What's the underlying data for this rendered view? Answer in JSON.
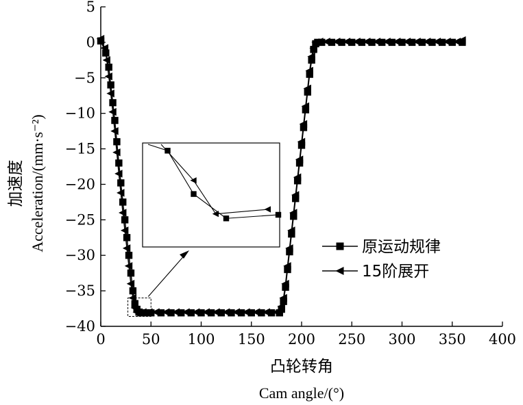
{
  "chart_data": {
    "type": "line",
    "xlabel": "凸轮转角",
    "xlabel_en": "Cam angle/(°)",
    "ylabel": "加速度",
    "ylabel_en": "Acceleration/(mm·s⁻²)",
    "xlim": [
      0,
      400
    ],
    "ylim": [
      -40,
      5
    ],
    "x_ticks": [
      0,
      50,
      100,
      150,
      200,
      250,
      300,
      350,
      400
    ],
    "y_ticks": [
      5,
      0,
      -5,
      -10,
      -15,
      -20,
      -25,
      -30,
      -35,
      -40
    ],
    "grid": false,
    "legend_position": "right-middle",
    "series": [
      {
        "name": "原运动规律",
        "marker": "square",
        "x": [
          0,
          5,
          8,
          10,
          12,
          14,
          16,
          18,
          20,
          22,
          24,
          26,
          28,
          30,
          32,
          34,
          36,
          38,
          40,
          45,
          50,
          60,
          70,
          80,
          90,
          100,
          110,
          120,
          130,
          140,
          150,
          160,
          170,
          178,
          180,
          182,
          184,
          186,
          188,
          190,
          192,
          194,
          196,
          198,
          200,
          202,
          204,
          206,
          208,
          210,
          212,
          214,
          216,
          220,
          230,
          240,
          250,
          260,
          270,
          280,
          290,
          300,
          310,
          320,
          330,
          340,
          350,
          360
        ],
        "values": [
          0.2,
          -1.5,
          -3.5,
          -6,
          -8.5,
          -11,
          -14,
          -17,
          -19.8,
          -22.5,
          -25,
          -27.5,
          -30,
          -32.5,
          -35,
          -36.8,
          -37.6,
          -38,
          -38.1,
          -38.1,
          -38.1,
          -38.1,
          -38.1,
          -38.1,
          -38.1,
          -38.1,
          -38.1,
          -38.1,
          -38.1,
          -38.1,
          -38.1,
          -38.1,
          -38.1,
          -38.1,
          -37.6,
          -36.5,
          -34.5,
          -32,
          -29.5,
          -27,
          -24.5,
          -22,
          -19.5,
          -17,
          -14.5,
          -12,
          -9.5,
          -7,
          -4.5,
          -2.5,
          -1,
          -0.2,
          0,
          0,
          0,
          0,
          0,
          0,
          0,
          0,
          0,
          0,
          0,
          0,
          0,
          0,
          0,
          0
        ]
      },
      {
        "name": "15阶展开",
        "marker": "triangle-left",
        "x": [
          0,
          4,
          6,
          8,
          10,
          12,
          14,
          16,
          18,
          20,
          22,
          24,
          26,
          28,
          30,
          32,
          34,
          36,
          38,
          42,
          48,
          55,
          65,
          75,
          85,
          95,
          105,
          115,
          125,
          135,
          145,
          155,
          165,
          175,
          180,
          182,
          184,
          186,
          188,
          190,
          192,
          194,
          196,
          198,
          200,
          202,
          204,
          206,
          208,
          210,
          212,
          214,
          218,
          225,
          235,
          245,
          255,
          265,
          275,
          285,
          295,
          305,
          315,
          325,
          335,
          345,
          355,
          360
        ],
        "values": [
          0.5,
          -0.8,
          -2.5,
          -4.8,
          -7.2,
          -9.8,
          -12.5,
          -15.5,
          -18.5,
          -21.2,
          -24,
          -26.5,
          -29,
          -31.5,
          -34,
          -36,
          -37.4,
          -38,
          -38,
          -38,
          -38,
          -38,
          -38,
          -38,
          -38,
          -38,
          -38,
          -38,
          -38,
          -38,
          -38,
          -38,
          -38,
          -38,
          -37.2,
          -36,
          -34,
          -31.5,
          -29,
          -26.5,
          -24,
          -21.5,
          -19,
          -16.5,
          -14,
          -11.5,
          -9,
          -6.5,
          -4,
          -2,
          -0.8,
          0,
          0.1,
          0.1,
          0.1,
          0.1,
          0.1,
          0.1,
          0.1,
          0.1,
          0.1,
          0.1,
          0.1,
          0.1,
          0.1,
          0.1,
          0.1,
          0.3
        ]
      }
    ],
    "inset": {
      "description": "zoom of region near x≈30–50, y≈-38",
      "series": [
        {
          "name": "原运动规律",
          "marker": "square",
          "points": [
            [
              0,
              0
            ],
            [
              0.15,
              0.07
            ],
            [
              0.35,
              0.55
            ],
            [
              0.6,
              0.82
            ],
            [
              1.0,
              0.78
            ]
          ]
        },
        {
          "name": "15阶展开",
          "marker": "triangle-left",
          "points": [
            [
              0.1,
              0.0
            ],
            [
              0.35,
              0.4
            ],
            [
              0.52,
              0.77
            ],
            [
              0.92,
              0.72
            ]
          ]
        }
      ]
    },
    "colors": {
      "line": "#000000"
    }
  }
}
